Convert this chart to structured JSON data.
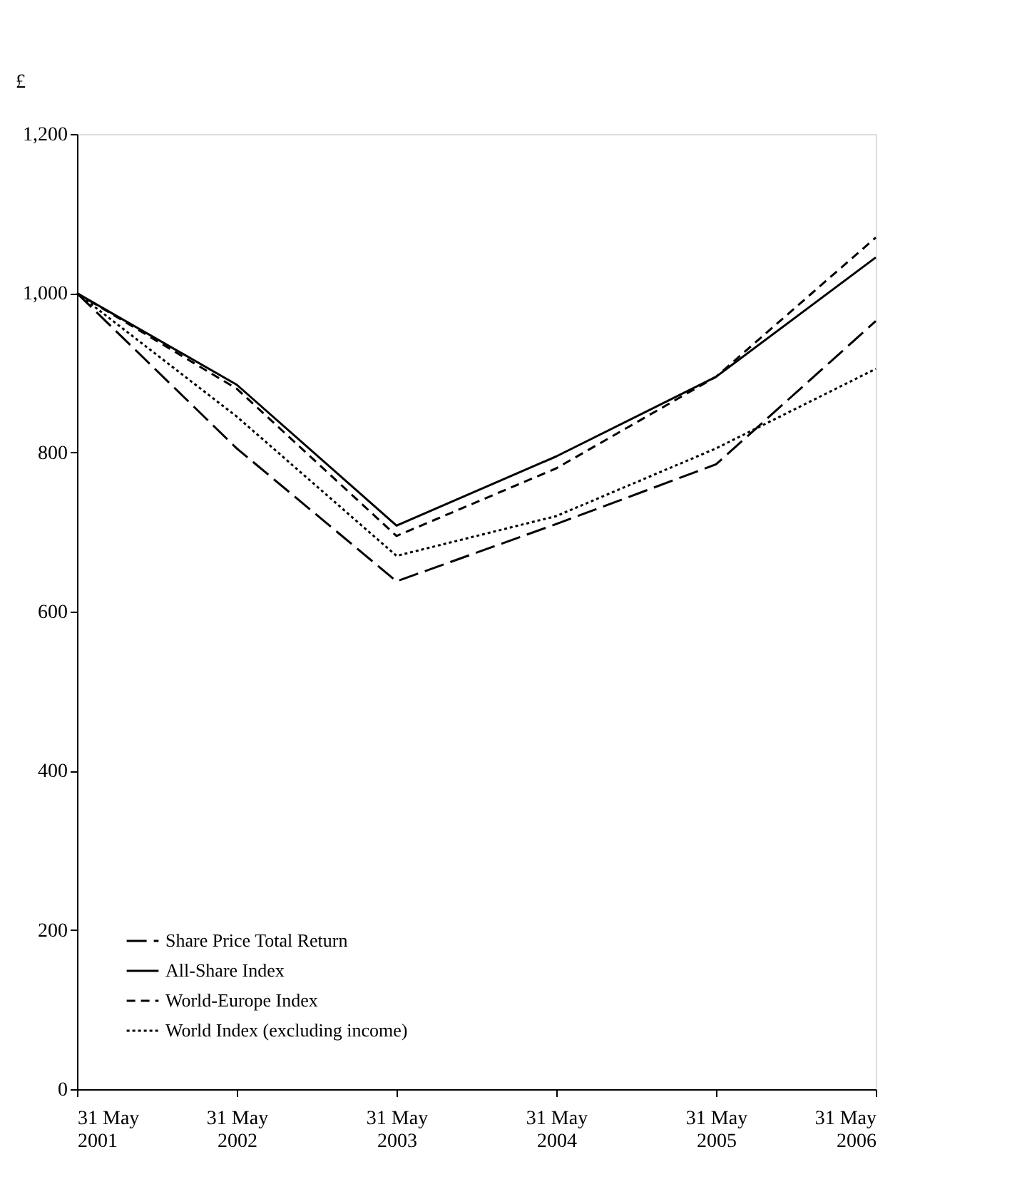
{
  "chart_data": {
    "type": "line",
    "ylabel": "£",
    "categories": [
      "31 May 2001",
      "31 May 2002",
      "31 May 2003",
      "31 May 2004",
      "31 May 2005",
      "31 May 2006"
    ],
    "series": [
      {
        "name": "Share Price Total Return",
        "color": "#000000",
        "line_style": "longdash",
        "values": [
          1000,
          805,
          638,
          710,
          785,
          965
        ]
      },
      {
        "name": "All-Share Index",
        "color": "#000000",
        "line_style": "solid",
        "values": [
          1000,
          885,
          708,
          795,
          895,
          1045
        ]
      },
      {
        "name": "World-Europe Index",
        "color": "#000000",
        "line_style": "dashed",
        "values": [
          1000,
          880,
          695,
          780,
          895,
          1070
        ]
      },
      {
        "name": "World Index (excluding income)",
        "color": "#000000",
        "line_style": "dotted",
        "values": [
          1000,
          845,
          670,
          720,
          805,
          905
        ]
      }
    ],
    "ylim": [
      0,
      1200
    ],
    "yticks": [
      0,
      200,
      400,
      600,
      800,
      {
        "value": 1000,
        "label": "1,000"
      },
      {
        "value": 1200,
        "label": "1,200"
      }
    ],
    "grid": false,
    "legend": "bottom left",
    "marker": "none"
  }
}
